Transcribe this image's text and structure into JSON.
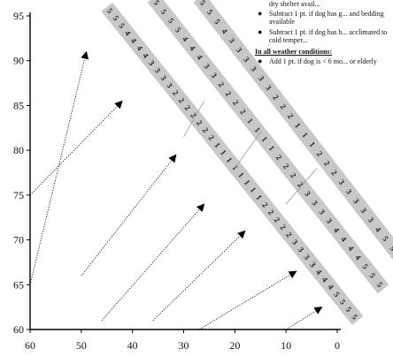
{
  "chart_data": {
    "type": "table",
    "title": "",
    "xlabel": "",
    "ylabel": "",
    "xlim": [
      60,
      0
    ],
    "ylim": [
      60,
      95
    ],
    "x_ticks": [
      60,
      50,
      40,
      30,
      20,
      10,
      0
    ],
    "y_ticks": [
      95,
      90,
      85,
      80,
      75,
      70,
      65,
      60
    ],
    "grid": false,
    "band_color": "#c8c8c8",
    "bands": [
      {
        "name": "",
        "start": [
          45,
          96
        ],
        "end": [
          -4,
          61
        ],
        "digits": [
          "5",
          "5",
          "5",
          "4",
          "4",
          "4",
          "4",
          "3",
          "3",
          "3",
          "3",
          "2",
          "2",
          "2",
          "2",
          "2",
          "2",
          "2",
          "1",
          "1",
          "1",
          "1",
          "1",
          "1",
          "1",
          "1",
          "2",
          "2",
          "2",
          "2",
          "2",
          "3",
          "3",
          "3",
          "3",
          "4",
          "4",
          "4",
          "5",
          "5",
          "5",
          "5"
        ]
      },
      {
        "name": "",
        "start": [
          36,
          97
        ],
        "end": [
          -9,
          64.5
        ],
        "digits": [
          "5",
          "5",
          "5",
          "5",
          "4",
          "4",
          "4",
          "3",
          "3",
          "2",
          "2",
          "2",
          "2",
          "1",
          "1",
          "1",
          "1",
          "2",
          "2",
          "2",
          "2",
          "3",
          "3",
          "3",
          "3",
          "4",
          "4",
          "4",
          "4",
          "5",
          "5",
          "5"
        ]
      },
      {
        "name": "",
        "start": [
          27,
          97
        ],
        "end": [
          -13,
          67.5
        ],
        "digits": [
          "5",
          "5",
          "5",
          "4",
          "3",
          "3",
          "3",
          "3",
          "3",
          "3",
          "2",
          "2",
          "2",
          "1",
          "1",
          "1",
          "2",
          "2",
          "2",
          "3",
          "3",
          "3",
          "3",
          "3",
          "4",
          "5",
          "5",
          "5"
        ]
      }
    ],
    "arrows": [
      {
        "from": [
          60,
          65
        ],
        "to": [
          49,
          91
        ]
      },
      {
        "from": [
          60,
          75
        ],
        "to": [
          42,
          85.5
        ]
      },
      {
        "from": [
          50,
          66
        ],
        "to": [
          31.5,
          79.5
        ]
      },
      {
        "from": [
          46,
          61
        ],
        "to": [
          26,
          74
        ]
      },
      {
        "from": [
          36,
          61
        ],
        "to": [
          18,
          71
        ]
      },
      {
        "from": [
          27,
          60
        ],
        "to": [
          8,
          66.5
        ]
      },
      {
        "from": [
          10,
          60
        ],
        "to": [
          3,
          62.5
        ]
      }
    ],
    "guides": [
      {
        "from": [
          30,
          81.5
        ],
        "to": [
          26,
          85.5
        ]
      },
      {
        "from": [
          20,
          78
        ],
        "to": [
          15,
          82
        ]
      },
      {
        "from": [
          10,
          74
        ],
        "to": [
          4,
          78
        ]
      }
    ]
  },
  "notes": {
    "fragment": "dry shelter avail...",
    "wet_items": [
      "Subtract 1 pt. if dog has g... and bedding available",
      "Subtract 1 pt. if dog has b... acclimated to cold temper..."
    ],
    "all_heading": "In all weather conditions:",
    "all_items": [
      "Add 1 pt. if dog is < 6 mo... or elderly"
    ]
  },
  "icons": {
    "bullet": "bullet-dot-icon"
  }
}
